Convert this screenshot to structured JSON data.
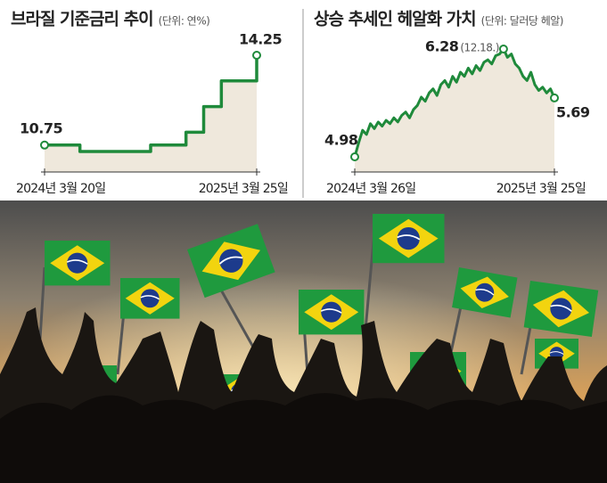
{
  "chart_data": [
    {
      "type": "line",
      "step": true,
      "title": "브라질 기준금리 추이",
      "subtitle": "(단위: 연%)",
      "color": "#1f8a3b",
      "fill": "#efe8dc",
      "categories": [
        "2024년 3월 20일",
        null,
        null,
        null,
        null,
        null,
        null,
        null,
        null,
        null,
        null,
        null,
        "2025년 3월 25일"
      ],
      "values": [
        10.75,
        10.75,
        10.5,
        10.5,
        10.5,
        10.5,
        10.75,
        10.75,
        11.25,
        12.25,
        13.25,
        13.25,
        14.25
      ]
    },
    {
      "type": "line",
      "step": false,
      "title": "상승 추세인 헤알화 가치",
      "subtitle": "(단위: 달러당 헤알)",
      "color": "#1f8a3b",
      "fill": "#efe8dc",
      "peak_date_label": "(12.18.)",
      "categories": [
        "2024년 3월 26일",
        null,
        null,
        null,
        null,
        null,
        null,
        null,
        null,
        null,
        null,
        null,
        null,
        null,
        null,
        null,
        null,
        null,
        null,
        null,
        null,
        null,
        null,
        null,
        null,
        null,
        null,
        null,
        null,
        null,
        null,
        null,
        null,
        null,
        null,
        null,
        null,
        null,
        null,
        null,
        null,
        null,
        null,
        null,
        null,
        null,
        null,
        null,
        null,
        null,
        null,
        "2025년 3월 25일"
      ],
      "values": [
        4.98,
        5.15,
        5.3,
        5.25,
        5.38,
        5.32,
        5.4,
        5.35,
        5.42,
        5.38,
        5.45,
        5.4,
        5.48,
        5.52,
        5.45,
        5.55,
        5.6,
        5.7,
        5.65,
        5.75,
        5.8,
        5.72,
        5.85,
        5.9,
        5.82,
        5.95,
        5.88,
        6.0,
        5.95,
        6.05,
        5.98,
        6.08,
        6.02,
        6.12,
        6.15,
        6.1,
        6.2,
        6.22,
        6.28,
        6.18,
        6.22,
        6.1,
        6.05,
        5.95,
        5.9,
        6.0,
        5.85,
        5.78,
        5.82,
        5.75,
        5.8,
        5.69
      ]
    }
  ]
}
